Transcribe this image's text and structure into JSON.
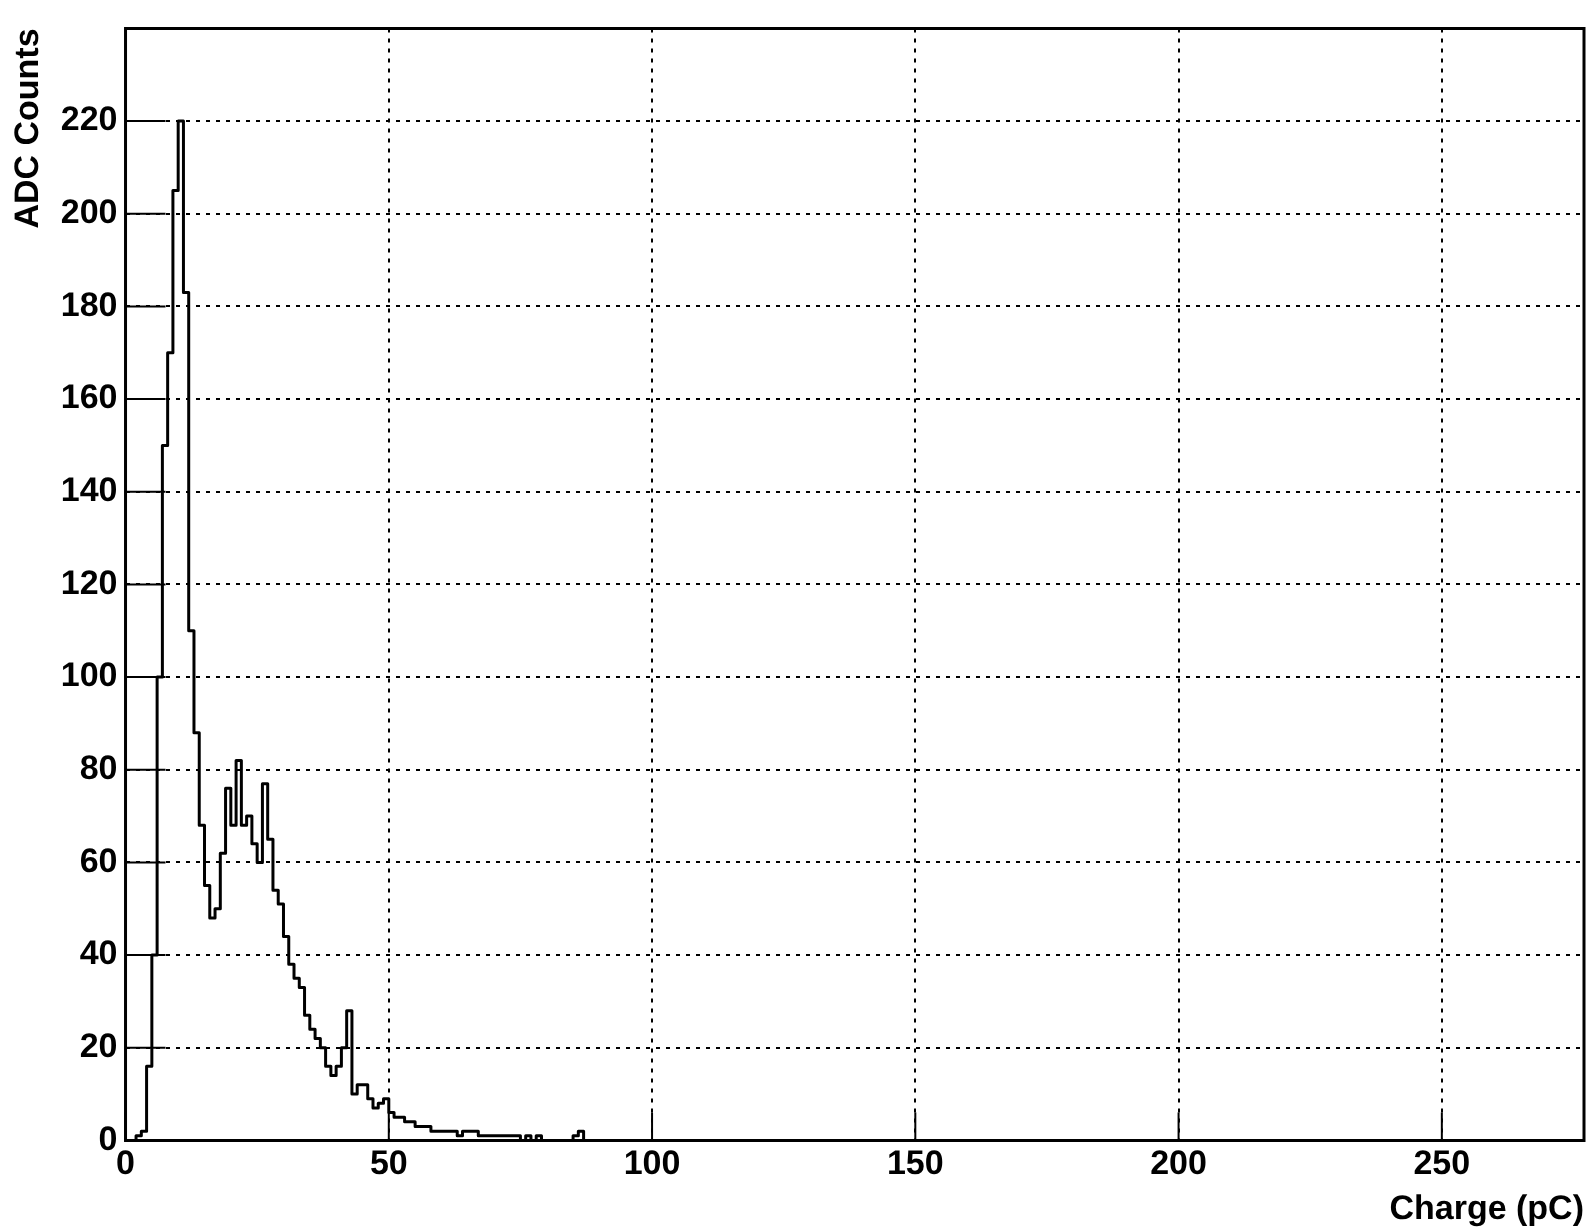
{
  "chart_data": {
    "type": "histogram",
    "xlabel": "Charge (pC)",
    "ylabel": "ADC Counts",
    "bins": [
      0,
      1,
      2,
      3,
      4,
      5,
      6,
      7,
      8,
      9,
      10,
      11,
      12,
      13,
      14,
      15,
      16,
      17,
      18,
      19,
      20,
      21,
      22,
      23,
      24,
      25,
      26,
      27,
      28,
      29,
      30,
      31,
      32,
      33,
      34,
      35,
      36,
      37,
      38,
      39,
      40,
      41,
      42,
      43,
      44,
      45,
      46,
      47,
      48,
      49,
      50,
      51,
      52,
      53,
      54,
      55,
      56,
      57,
      58,
      59,
      60,
      61,
      62,
      63,
      64,
      65,
      66,
      67,
      68,
      69,
      70,
      71,
      72,
      73,
      74,
      75,
      76,
      77,
      78,
      79,
      80,
      81,
      82,
      83,
      84,
      85,
      86,
      87,
      88,
      89,
      90
    ],
    "values": [
      0,
      0,
      0,
      1,
      2,
      16,
      40,
      100,
      150,
      170,
      205,
      220,
      183,
      110,
      88,
      68,
      55,
      48,
      50,
      62,
      76,
      68,
      82,
      68,
      70,
      64,
      60,
      77,
      65,
      54,
      51,
      44,
      38,
      35,
      33,
      27,
      24,
      22,
      20,
      16,
      14,
      16,
      20,
      28,
      10,
      12,
      12,
      9,
      7,
      8,
      9,
      6,
      5,
      5,
      4,
      4,
      3,
      3,
      3,
      2,
      2,
      2,
      2,
      2,
      1,
      2,
      2,
      2,
      1,
      1,
      1,
      1,
      1,
      1,
      1,
      1,
      0,
      1,
      0,
      1,
      0,
      0,
      0,
      0,
      0,
      0,
      1,
      2,
      0,
      0
    ],
    "color": "#000000",
    "xlim": [
      0,
      277
    ],
    "xticks": [
      0,
      50,
      100,
      150,
      200,
      250
    ],
    "ylim": [
      0,
      240
    ],
    "yticks": [
      0,
      20,
      40,
      60,
      80,
      100,
      120,
      140,
      160,
      180,
      200,
      220
    ],
    "grid": true,
    "legend": false
  }
}
